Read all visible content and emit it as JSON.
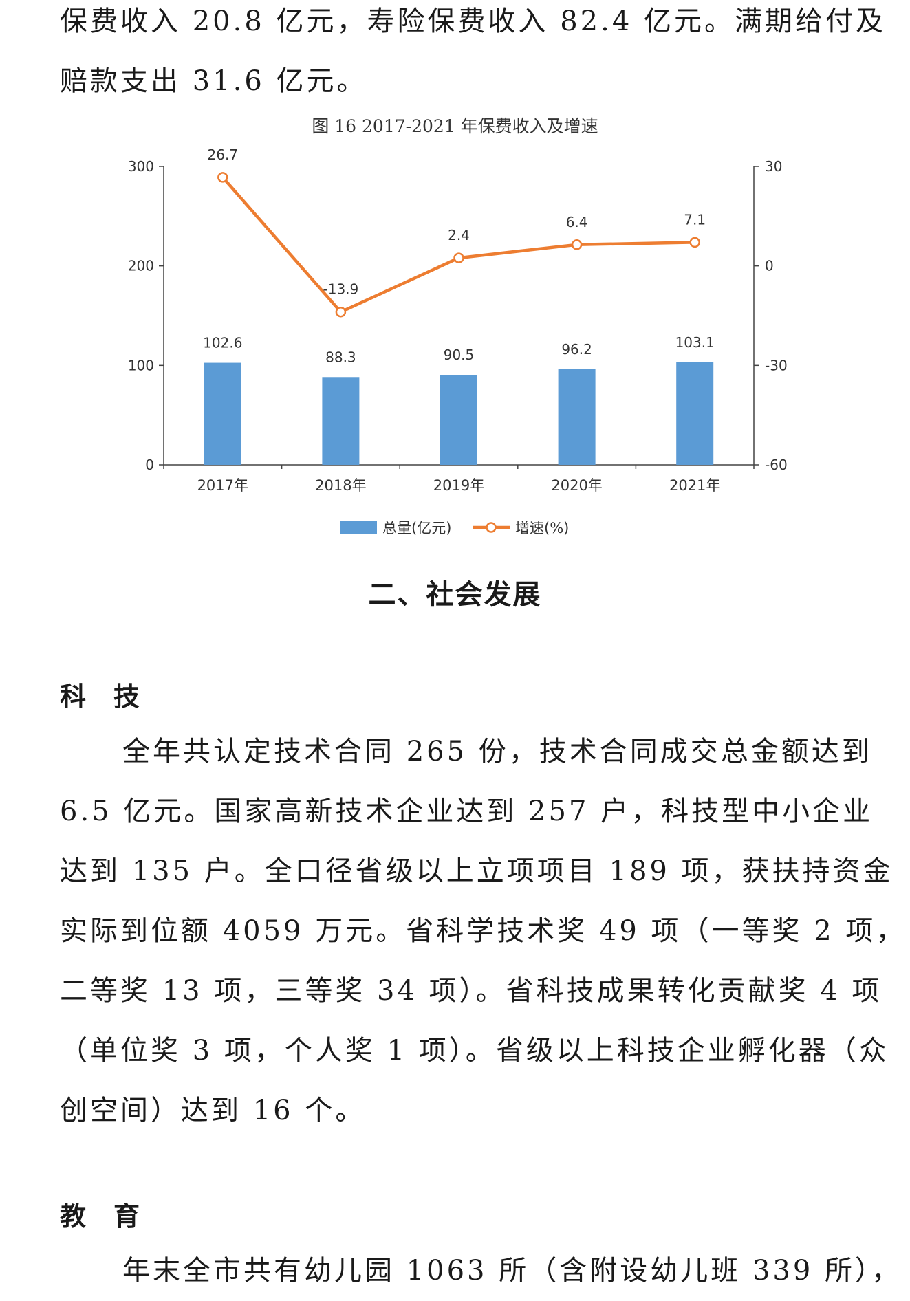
{
  "top_paragraph": {
    "lines": [
      "保费收入 20.8 亿元，寿险保费收入 82.4 亿元。满期给付及",
      "赔款支出 31.6 亿元。"
    ]
  },
  "figure": {
    "caption": "图 16  2017-2021 年保费收入及增速"
  },
  "chart_data": {
    "type": "bar+line",
    "categories": [
      "2017年",
      "2018年",
      "2019年",
      "2020年",
      "2021年"
    ],
    "series": [
      {
        "name": "总量(亿元)",
        "type": "bar",
        "axis": "left",
        "values": [
          102.6,
          88.3,
          90.5,
          96.2,
          103.1
        ],
        "labels": [
          "102.6",
          "88.3",
          "90.5",
          "96.2",
          "103.1"
        ],
        "color": "#5B9BD5"
      },
      {
        "name": "增速(%)",
        "type": "line",
        "axis": "right",
        "values": [
          26.7,
          -13.9,
          2.4,
          6.4,
          7.1
        ],
        "labels": [
          "26.7",
          "-13.9",
          "2.4",
          "6.4",
          "7.1"
        ],
        "color": "#ED7D31"
      }
    ],
    "left_axis": {
      "ylim": [
        0,
        300
      ],
      "ticks": [
        "0",
        "100",
        "200",
        "300"
      ]
    },
    "right_axis": {
      "ylim": [
        -60,
        30
      ],
      "ticks": [
        "-60",
        "-30",
        "0",
        "30"
      ]
    },
    "legend_position": "bottom",
    "grid": false
  },
  "section_title": "二、社会发展",
  "tech": {
    "heading": "科技",
    "lines": [
      "全年共认定技术合同 265 份，技术合同成交总金额达到",
      "6.5 亿元。国家高新技术企业达到 257 户，科技型中小企业",
      "达到 135 户。全口径省级以上立项项目 189 项，获扶持资金",
      "实际到位额 4059 万元。省科学技术奖 49 项（一等奖 2 项，",
      "二等奖 13 项，三等奖 34 项）。省科技成果转化贡献奖 4 项",
      "（单位奖 3 项，个人奖 1 项）。省级以上科技企业孵化器（众",
      "创空间）达到 16 个。"
    ]
  },
  "education": {
    "heading": "教育",
    "lines": [
      "年末全市共有幼儿园 1063 所（含附设幼儿班 339 所），"
    ]
  }
}
